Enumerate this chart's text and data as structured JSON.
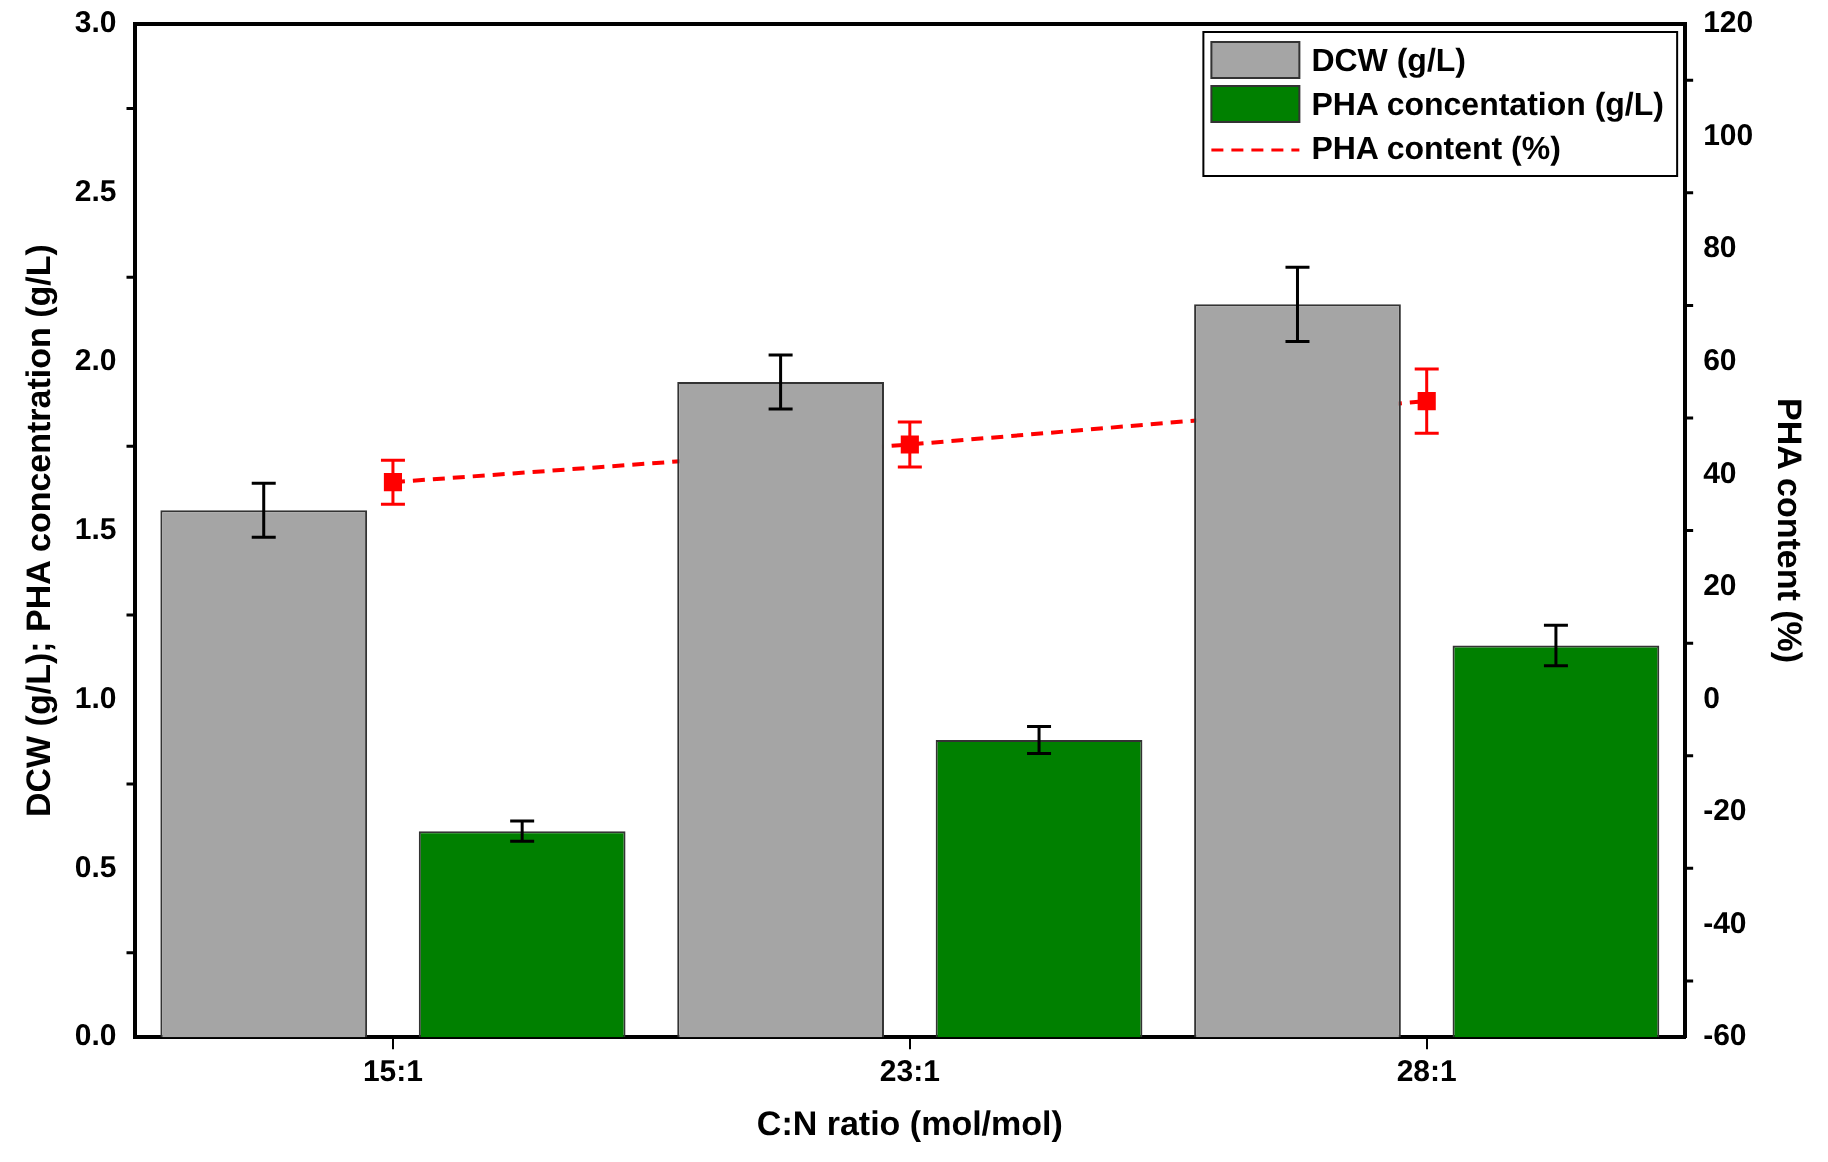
{
  "chart_data": {
    "type": "bar",
    "xlabel": "C:N ratio (mol/mol)",
    "ylabel": "DCW (g/L); PHA concentration (g/L)",
    "y2label": "PHA content (%)",
    "categories": [
      "15:1",
      "23:1",
      "28:1"
    ],
    "series": [
      {
        "name": "DCW (g/L)",
        "color": "#a5a5a5",
        "values": [
          1.56,
          1.94,
          2.17
        ],
        "errors": [
          0.08,
          0.08,
          0.11
        ]
      },
      {
        "name": "PHA concentation (g/L)",
        "color": "#008000",
        "values": [
          0.61,
          0.88,
          1.16
        ],
        "errors": [
          0.03,
          0.04,
          0.06
        ]
      },
      {
        "name": "PHA content (%)",
        "type": "line",
        "axis": "y2",
        "color": "#ff0000",
        "values": [
          38.6,
          45.3,
          53
        ],
        "errors": [
          3.9,
          4,
          5.7
        ],
        "marker": "square",
        "line_style": "dashed"
      }
    ],
    "ylim": [
      0,
      3
    ],
    "yticks": [
      {
        "value": 0,
        "label": "0.0"
      },
      {
        "value": 0.25,
        "label": null
      },
      0.5,
      {
        "value": 0.75,
        "label": null
      },
      {
        "value": 1,
        "label": "1.0"
      },
      {
        "value": 1.25,
        "label": null
      },
      1.5,
      {
        "value": 1.75,
        "label": null
      },
      {
        "value": 2,
        "label": "2.0"
      },
      {
        "value": 2.25,
        "label": null
      },
      2.5,
      {
        "value": 2.75,
        "label": null
      },
      {
        "value": 3,
        "label": "3.0"
      }
    ],
    "y2lim": [
      -60,
      120
    ],
    "y2ticks": [
      -60,
      {
        "value": -50,
        "label": null
      },
      -40,
      {
        "value": -30,
        "label": null
      },
      -20,
      {
        "value": -10,
        "label": null
      },
      0,
      {
        "value": 10,
        "label": null
      },
      20,
      {
        "value": 30,
        "label": null
      },
      40,
      {
        "value": 50,
        "label": null
      },
      60,
      {
        "value": 70,
        "label": null
      },
      80,
      {
        "value": 90,
        "label": null
      },
      100,
      {
        "value": 110,
        "label": null
      },
      120
    ],
    "grid": false,
    "legend": "top right"
  }
}
